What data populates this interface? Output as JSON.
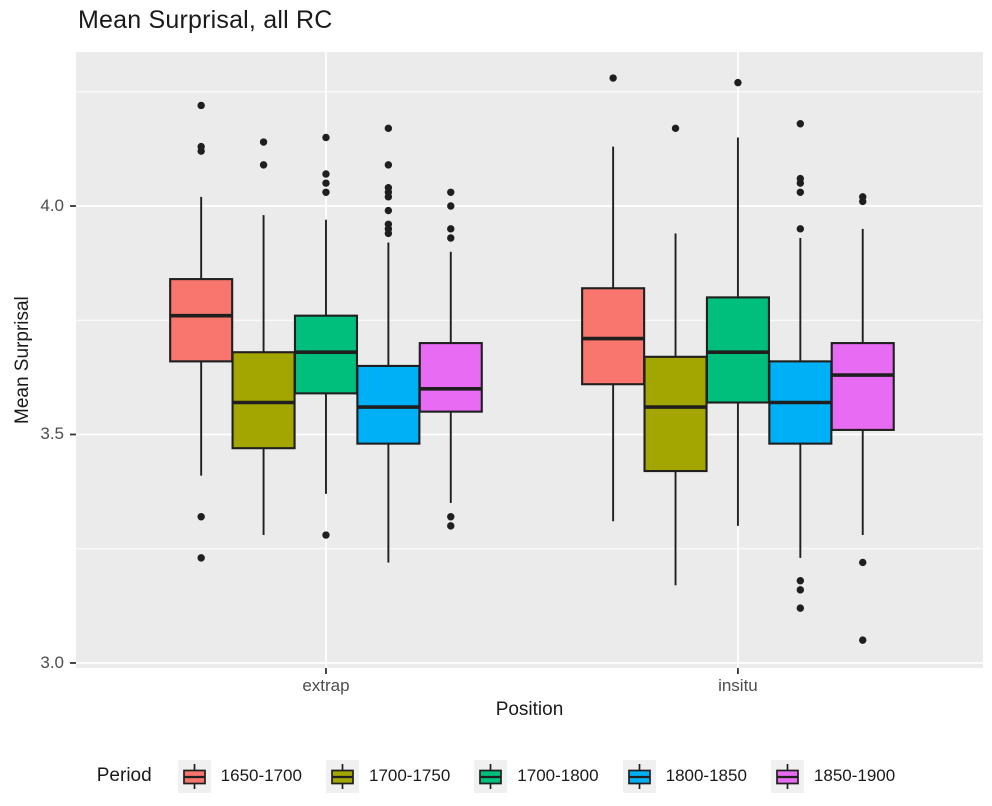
{
  "chart_data": {
    "type": "boxplot",
    "title": "Mean Surprisal, all RC",
    "xlabel": "Position",
    "ylabel": "Mean Surprisal",
    "legend_title": "Period",
    "legend_position": "bottom",
    "grid": true,
    "panel_bg": "#EBEBEB",
    "gridline_color": "#FFFFFF",
    "box_stroke_color": "#1F1F1F",
    "tick_color": "#333333",
    "ylim": [
      2.99,
      4.34
    ],
    "yticks": [
      {
        "value": 3.0,
        "label": "3.0"
      },
      {
        "value": 3.5,
        "label": "3.5"
      },
      {
        "value": 4.0,
        "label": "4.0"
      }
    ],
    "yticks_minor": [
      3.25,
      3.75,
      4.25
    ],
    "groups": [
      {
        "id": "extrap",
        "label": "extrap"
      },
      {
        "id": "insitu",
        "label": "insitu"
      }
    ],
    "series": [
      {
        "name": "1650-1700",
        "color": "#F8766D",
        "boxes": [
          {
            "group": "extrap",
            "low": 3.41,
            "q1": 3.66,
            "median": 3.76,
            "q3": 3.84,
            "high": 4.02,
            "outliers_high": [
              4.22,
              4.13,
              4.12
            ],
            "outliers_low": [
              3.32,
              3.23
            ]
          },
          {
            "group": "insitu",
            "low": 3.31,
            "q1": 3.61,
            "median": 3.71,
            "q3": 3.82,
            "high": 4.13,
            "outliers_high": [
              4.28
            ],
            "outliers_low": []
          }
        ]
      },
      {
        "name": "1700-1750",
        "color": "#A3A500",
        "boxes": [
          {
            "group": "extrap",
            "low": 3.28,
            "q1": 3.47,
            "median": 3.57,
            "q3": 3.68,
            "high": 3.98,
            "outliers_high": [
              4.14,
              4.09
            ],
            "outliers_low": []
          },
          {
            "group": "insitu",
            "low": 3.17,
            "q1": 3.42,
            "median": 3.56,
            "q3": 3.67,
            "high": 3.94,
            "outliers_high": [
              4.17
            ],
            "outliers_low": []
          }
        ]
      },
      {
        "name": "1700-1800",
        "color": "#00BF7D",
        "boxes": [
          {
            "group": "extrap",
            "low": 3.37,
            "q1": 3.59,
            "median": 3.68,
            "q3": 3.76,
            "high": 3.97,
            "outliers_high": [
              4.15,
              4.07,
              4.05,
              4.03
            ],
            "outliers_low": [
              3.28
            ]
          },
          {
            "group": "insitu",
            "low": 3.3,
            "q1": 3.57,
            "median": 3.68,
            "q3": 3.8,
            "high": 4.15,
            "outliers_high": [
              4.27
            ],
            "outliers_low": []
          }
        ]
      },
      {
        "name": "1800-1850",
        "color": "#00B0F6",
        "boxes": [
          {
            "group": "extrap",
            "low": 3.22,
            "q1": 3.48,
            "median": 3.56,
            "q3": 3.65,
            "high": 3.92,
            "outliers_high": [
              4.17,
              4.09,
              4.04,
              4.03,
              4.02,
              3.99,
              3.96,
              3.95,
              3.94
            ],
            "outliers_low": []
          },
          {
            "group": "insitu",
            "low": 3.23,
            "q1": 3.48,
            "median": 3.57,
            "q3": 3.66,
            "high": 3.93,
            "outliers_high": [
              4.18,
              4.06,
              4.05,
              4.03,
              3.95
            ],
            "outliers_low": [
              3.18,
              3.16,
              3.12
            ]
          }
        ]
      },
      {
        "name": "1850-1900",
        "color": "#E76BF3",
        "boxes": [
          {
            "group": "extrap",
            "low": 3.35,
            "q1": 3.55,
            "median": 3.6,
            "q3": 3.7,
            "high": 3.9,
            "outliers_high": [
              4.03,
              4.0,
              3.95,
              3.93
            ],
            "outliers_low": [
              3.32,
              3.3
            ]
          },
          {
            "group": "insitu",
            "low": 3.28,
            "q1": 3.51,
            "median": 3.63,
            "q3": 3.7,
            "high": 3.95,
            "outliers_high": [
              4.02,
              4.01
            ],
            "outliers_low": [
              3.22,
              3.05
            ]
          }
        ]
      }
    ]
  }
}
